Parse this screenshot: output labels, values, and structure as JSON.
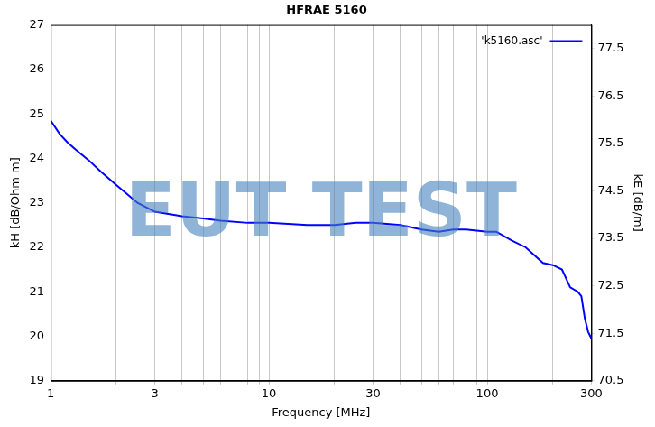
{
  "chart_data": {
    "type": "line",
    "title": "HFRAE 5160",
    "x_label": "Frequency [MHz]",
    "y_label": "kH [dB/Ohm m]",
    "y2_label": "kE [dB/m]",
    "watermark": "EUT TEST",
    "log": "x",
    "grid": "x",
    "legend": "upper right",
    "xlim": [
      1,
      300
    ],
    "xticks": [
      1,
      3,
      10,
      30,
      100,
      300
    ],
    "ylim": [
      19,
      27
    ],
    "yticks": [
      19,
      20,
      21,
      22,
      23,
      24,
      25,
      26,
      27
    ],
    "y2lim": [
      70.5,
      78
    ],
    "y2ticks": [
      70.5,
      71.5,
      72.5,
      73.5,
      74.5,
      75.5,
      76.5,
      77.5
    ],
    "x": [
      1,
      1.1,
      1.2,
      1.3,
      1.5,
      1.7,
      2,
      2.5,
      3,
      4,
      5,
      6,
      8,
      10,
      15,
      20,
      25,
      30,
      40,
      50,
      60,
      70,
      80,
      100,
      110,
      130,
      150,
      180,
      200,
      220,
      240,
      260,
      270,
      280,
      290,
      300
    ],
    "series": [
      {
        "name": "'k5160.asc'",
        "color": "#0000ff",
        "values": [
          24.85,
          24.55,
          24.35,
          24.2,
          23.95,
          23.7,
          23.4,
          23.0,
          22.8,
          22.7,
          22.65,
          22.6,
          22.55,
          22.55,
          22.5,
          22.5,
          22.55,
          22.55,
          22.5,
          22.4,
          22.35,
          22.4,
          22.4,
          22.35,
          22.35,
          22.15,
          22.0,
          21.65,
          21.6,
          21.5,
          21.1,
          21.0,
          20.9,
          20.4,
          20.1,
          19.95
        ]
      }
    ]
  }
}
